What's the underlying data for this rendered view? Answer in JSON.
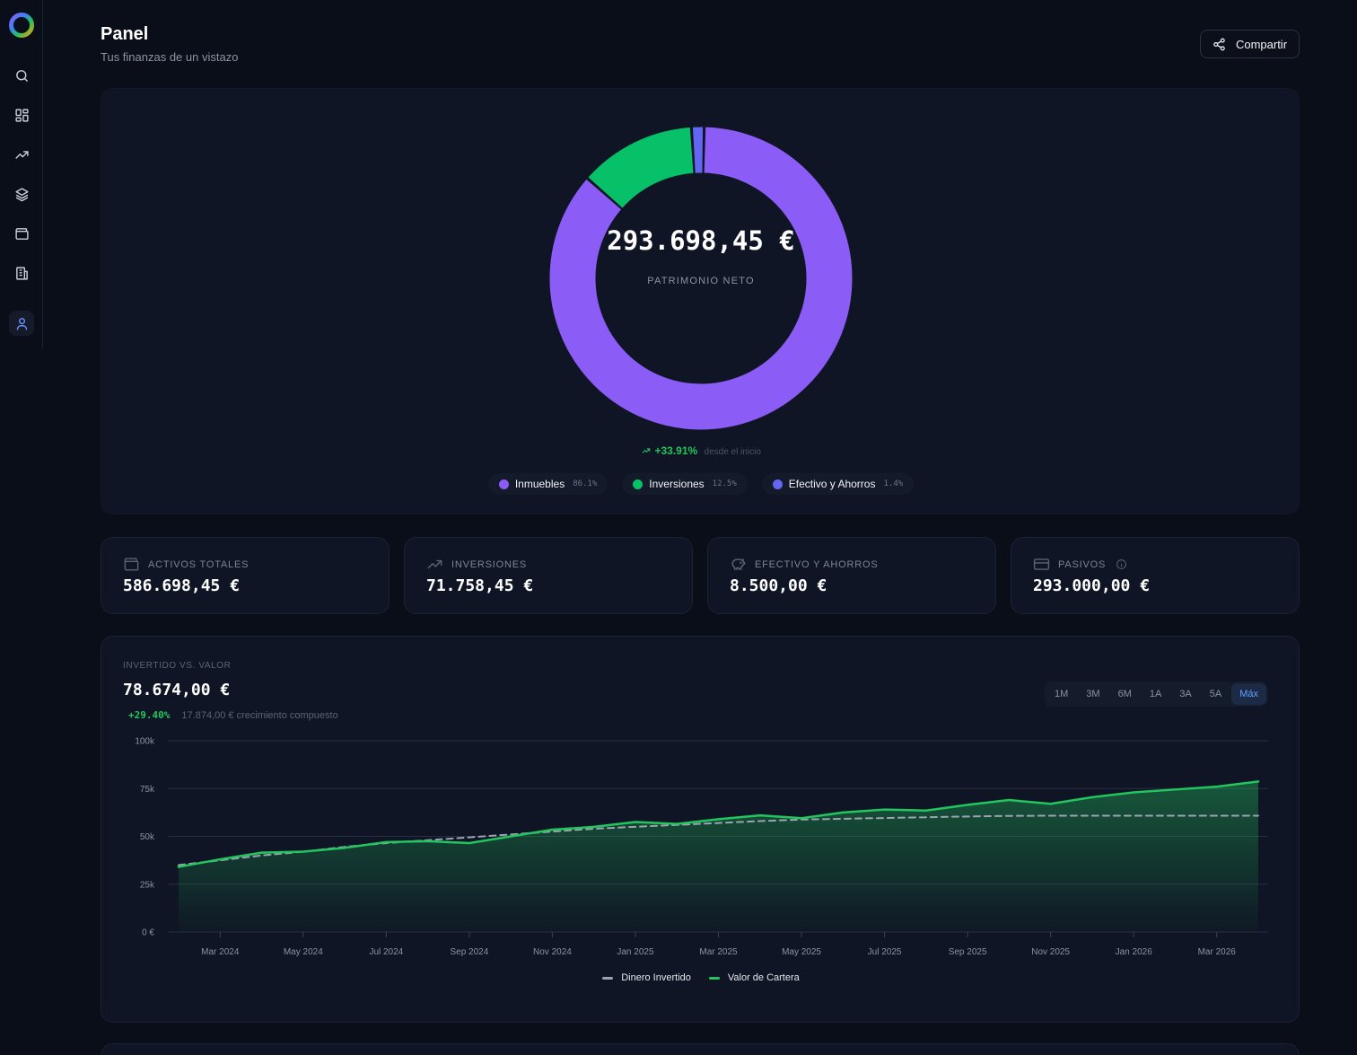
{
  "header": {
    "title": "Panel",
    "subtitle": "Tus finanzas de un vistazo",
    "share_label": "Compartir"
  },
  "sidebar": {
    "items": [
      {
        "icon": "search-icon"
      },
      {
        "icon": "dashboard-icon"
      },
      {
        "icon": "trending-up-icon"
      },
      {
        "icon": "layers-icon"
      },
      {
        "icon": "wallet-icon"
      },
      {
        "icon": "building-icon"
      },
      {
        "icon": "user-icon",
        "active": true
      }
    ]
  },
  "net_worth": {
    "value": "293.698,45 €",
    "label": "PATRIMONIO NETO",
    "growth": "+33.91%",
    "growth_suffix": "desde el inicio",
    "segments": [
      {
        "name": "Inmuebles",
        "pct": "86.1%",
        "value": 86.1,
        "color": "#8b5cf6"
      },
      {
        "name": "Inversiones",
        "pct": "12.5%",
        "value": 12.5,
        "color": "#06c167"
      },
      {
        "name": "Efectivo y Ahorros",
        "pct": "1.4%",
        "value": 1.4,
        "color": "#6366f1"
      }
    ]
  },
  "stats": [
    {
      "label": "ACTIVOS TOTALES",
      "value": "586.698,45 €",
      "icon": "wallet-icon"
    },
    {
      "label": "INVERSIONES",
      "value": "71.758,45 €",
      "icon": "trending-up-icon"
    },
    {
      "label": "EFECTIVO Y AHORROS",
      "value": "8.500,00 €",
      "icon": "piggy-bank-icon"
    },
    {
      "label": "PASIVOS",
      "value": "293.000,00 €",
      "icon": "credit-card-icon"
    }
  ],
  "invest_chart": {
    "kicker": "INVERTIDO VS. VALOR",
    "total": "78.674,00 €",
    "growth_pct": "+29.40%",
    "growth_text": "17.874,00 € crecimiento compuesto",
    "ranges": [
      "1M",
      "3M",
      "6M",
      "1A",
      "3A",
      "5A",
      "Máx"
    ],
    "active_range": "Máx"
  },
  "chart_data": {
    "type": "area",
    "y_ticks": [
      "100k",
      "75k",
      "50k",
      "25k",
      "0 €"
    ],
    "ylim": [
      0,
      100000
    ],
    "x_ticks": [
      "Mar 2024",
      "May 2024",
      "Jul 2024",
      "Sep 2024",
      "Nov 2024",
      "Jan 2025",
      "Mar 2025",
      "May 2025",
      "Jul 2025",
      "Sep 2025",
      "Nov 2025",
      "Jan 2026",
      "Mar 2026"
    ],
    "x": [
      "Feb 2024",
      "Mar 2024",
      "Apr 2024",
      "May 2024",
      "Jun 2024",
      "Jul 2024",
      "Aug 2024",
      "Sep 2024",
      "Oct 2024",
      "Nov 2024",
      "Dec 2024",
      "Jan 2025",
      "Feb 2025",
      "Mar 2025",
      "Apr 2025",
      "May 2025",
      "Jun 2025",
      "Jul 2025",
      "Aug 2025",
      "Sep 2025",
      "Oct 2025",
      "Nov 2025",
      "Dec 2025",
      "Jan 2026",
      "Feb 2026",
      "Mar 2026",
      "Apr 2026"
    ],
    "series": [
      {
        "name": "Dinero Invertido",
        "color": "#9ca3af",
        "dashed": true,
        "values": [
          35000,
          37500,
          40000,
          42000,
          44500,
          46500,
          48000,
          49500,
          51000,
          52500,
          54000,
          55000,
          56000,
          57000,
          58000,
          58800,
          59200,
          59600,
          60000,
          60400,
          60700,
          60800,
          60800,
          60800,
          60800,
          60800,
          60800
        ]
      },
      {
        "name": "Valor de Cartera",
        "color": "#22c55e",
        "dashed": false,
        "values": [
          34000,
          38000,
          41500,
          42000,
          44000,
          47000,
          47500,
          46500,
          50000,
          53500,
          55000,
          57500,
          56500,
          59000,
          61000,
          59500,
          62500,
          64000,
          63500,
          66500,
          69000,
          67000,
          70500,
          73000,
          74500,
          76000,
          78700
        ]
      }
    ]
  }
}
